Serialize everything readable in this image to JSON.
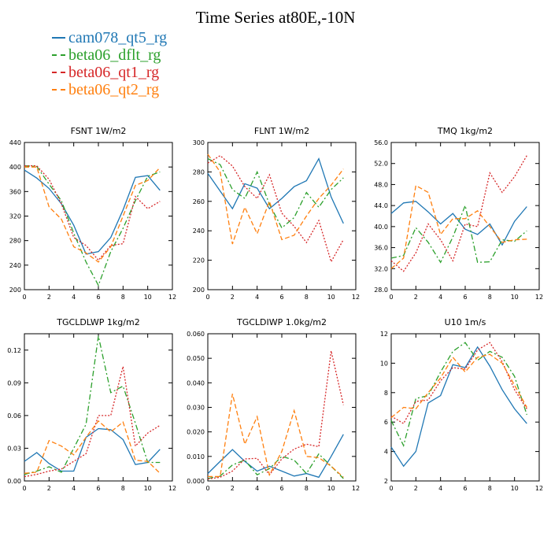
{
  "title": "Time Series at80E,-10N",
  "series_meta": [
    {
      "name": "cam078_qt5_rg",
      "color": "#1f77b4",
      "dash": "none"
    },
    {
      "name": "beta06_dflt_rg",
      "color": "#2ca02c",
      "dash": "7,3,2,3"
    },
    {
      "name": "beta06_qt1_rg",
      "color": "#d62728",
      "dash": "2,2"
    },
    {
      "name": "beta06_qt2_rg",
      "color": "#ff7f0e",
      "dash": "6,3"
    }
  ],
  "chart_data": [
    {
      "type": "line",
      "title": "FSNT  1W/m2",
      "x": [
        0,
        1,
        2,
        3,
        4,
        5,
        6,
        7,
        8,
        9,
        10,
        11
      ],
      "xlim": [
        0,
        12
      ],
      "xticks": [
        0,
        2,
        4,
        6,
        8,
        10,
        12
      ],
      "xtick_labels": [
        "0",
        "2",
        "4",
        "6",
        "8",
        "10",
        "12"
      ],
      "ylim": [
        200,
        440
      ],
      "yticks": [
        200,
        240,
        280,
        320,
        360,
        400,
        440
      ],
      "ytick_labels": [
        "200",
        "240",
        "280",
        "320",
        "360",
        "400",
        "440"
      ],
      "series": [
        {
          "name": "cam078_qt5_rg",
          "values": [
            395,
            382,
            365,
            340,
            305,
            258,
            262,
            285,
            330,
            383,
            386,
            362
          ]
        },
        {
          "name": "beta06_dflt_rg",
          "values": [
            402,
            401,
            372,
            345,
            292,
            245,
            207,
            262,
            300,
            345,
            385,
            392
          ]
        },
        {
          "name": "beta06_qt1_rg",
          "values": [
            402,
            402,
            380,
            340,
            285,
            272,
            248,
            272,
            275,
            352,
            332,
            344
          ]
        },
        {
          "name": "beta06_qt2_rg",
          "values": [
            400,
            400,
            335,
            315,
            270,
            260,
            245,
            270,
            320,
            370,
            378,
            399
          ]
        }
      ]
    },
    {
      "type": "line",
      "title": "FLNT  1W/m2",
      "x": [
        0,
        1,
        2,
        3,
        4,
        5,
        6,
        7,
        8,
        9,
        10,
        11
      ],
      "xlim": [
        0,
        12
      ],
      "xticks": [
        0,
        2,
        4,
        6,
        8,
        10,
        12
      ],
      "xtick_labels": [
        "0",
        "2",
        "4",
        "6",
        "8",
        "10",
        "12"
      ],
      "ylim": [
        200,
        300
      ],
      "yticks": [
        200,
        220,
        240,
        260,
        280,
        300
      ],
      "ytick_labels": [
        "200",
        "220",
        "240",
        "260",
        "280",
        "300"
      ],
      "series": [
        {
          "name": "cam078_qt5_rg",
          "values": [
            279,
            267,
            255,
            272,
            269,
            255,
            262,
            270,
            274,
            289,
            263,
            245
          ]
        },
        {
          "name": "beta06_dflt_rg",
          "values": [
            289,
            285,
            268,
            262,
            280,
            258,
            242,
            249,
            266,
            256,
            268,
            276
          ]
        },
        {
          "name": "beta06_qt1_rg",
          "values": [
            286,
            291,
            284,
            270,
            262,
            278,
            252,
            243,
            232,
            247,
            219,
            234
          ]
        },
        {
          "name": "beta06_qt2_rg",
          "values": [
            292,
            280,
            231,
            256,
            238,
            260,
            234,
            237,
            250,
            262,
            271,
            282
          ]
        }
      ]
    },
    {
      "type": "line",
      "title": "TMQ  1kg/m2",
      "x": [
        0,
        1,
        2,
        3,
        4,
        5,
        6,
        7,
        8,
        9,
        10,
        11
      ],
      "xlim": [
        0,
        12
      ],
      "xticks": [
        0,
        2,
        4,
        6,
        8,
        10,
        12
      ],
      "xtick_labels": [
        "0",
        "2",
        "4",
        "6",
        "8",
        "10",
        "12"
      ],
      "ylim": [
        28,
        56
      ],
      "yticks": [
        28,
        32,
        36,
        40,
        44,
        48,
        52,
        56
      ],
      "ytick_labels": [
        "28.0",
        "32.0",
        "36.0",
        "40.0",
        "44.0",
        "48.0",
        "52.0",
        "56.0"
      ],
      "series": [
        {
          "name": "cam078_qt5_rg",
          "values": [
            42.5,
            44.5,
            44.8,
            42.8,
            40.5,
            42.5,
            39.5,
            38.5,
            40.5,
            36.5,
            41.0,
            43.8
          ]
        },
        {
          "name": "beta06_dflt_rg",
          "values": [
            34.0,
            34.5,
            39.8,
            37.0,
            33.2,
            38.0,
            44.0,
            33.2,
            33.3,
            37.5,
            37.2,
            39.2
          ]
        },
        {
          "name": "beta06_qt1_rg",
          "values": [
            33.5,
            31.5,
            35.0,
            40.5,
            37.5,
            33.5,
            40.5,
            40.0,
            50.2,
            46.5,
            49.5,
            53.5
          ]
        },
        {
          "name": "beta06_qt2_rg",
          "values": [
            32.0,
            34.0,
            47.8,
            46.5,
            38.5,
            41.5,
            41.5,
            43.0,
            40.0,
            37.0,
            37.5,
            37.6
          ]
        }
      ]
    },
    {
      "type": "line",
      "title": "TGCLDLWP  1kg/m2",
      "x": [
        0,
        1,
        2,
        3,
        4,
        5,
        6,
        7,
        8,
        9,
        10,
        11
      ],
      "xlim": [
        0,
        12
      ],
      "xticks": [
        0,
        2,
        4,
        6,
        8,
        10,
        12
      ],
      "xtick_labels": [
        "0",
        "2",
        "4",
        "6",
        "8",
        "10",
        "12"
      ],
      "ylim": [
        0,
        0.135
      ],
      "yticks": [
        0,
        0.03,
        0.06,
        0.09,
        0.12
      ],
      "ytick_labels": [
        "0.00",
        "0.03",
        "0.06",
        "0.09",
        "0.12"
      ],
      "series": [
        {
          "name": "cam078_qt5_rg",
          "values": [
            0.018,
            0.026,
            0.016,
            0.009,
            0.009,
            0.04,
            0.048,
            0.047,
            0.038,
            0.015,
            0.017,
            0.029
          ]
        },
        {
          "name": "beta06_dflt_rg",
          "values": [
            0.006,
            0.009,
            0.013,
            0.008,
            0.03,
            0.052,
            0.133,
            0.081,
            0.087,
            0.053,
            0.017,
            0.017
          ]
        },
        {
          "name": "beta06_qt1_rg",
          "values": [
            0.004,
            0.006,
            0.009,
            0.011,
            0.018,
            0.025,
            0.06,
            0.06,
            0.105,
            0.032,
            0.044,
            0.051
          ]
        },
        {
          "name": "beta06_qt2_rg",
          "values": [
            0.007,
            0.008,
            0.037,
            0.032,
            0.024,
            0.04,
            0.055,
            0.045,
            0.054,
            0.019,
            0.018,
            0.007
          ]
        }
      ]
    },
    {
      "type": "line",
      "title": "TGCLDIWP  1.0kg/m2",
      "x": [
        0,
        1,
        2,
        3,
        4,
        5,
        6,
        7,
        8,
        9,
        10,
        11
      ],
      "xlim": [
        0,
        12
      ],
      "xticks": [
        0,
        2,
        4,
        6,
        8,
        10,
        12
      ],
      "xtick_labels": [
        "0",
        "2",
        "4",
        "6",
        "8",
        "10",
        "12"
      ],
      "ylim": [
        0,
        0.06
      ],
      "yticks": [
        0,
        0.01,
        0.02,
        0.03,
        0.04,
        0.05,
        0.06
      ],
      "ytick_labels": [
        "0.000",
        "0.010",
        "0.020",
        "0.030",
        "0.040",
        "0.050",
        "0.060"
      ],
      "series": [
        {
          "name": "cam078_qt5_rg",
          "values": [
            0.003,
            0.008,
            0.0128,
            0.008,
            0.004,
            0.006,
            0.004,
            0.002,
            0.003,
            0.0015,
            0.01,
            0.019
          ]
        },
        {
          "name": "beta06_dflt_rg",
          "values": [
            0.001,
            0.002,
            0.0065,
            0.0085,
            0.0025,
            0.005,
            0.01,
            0.0085,
            0.003,
            0.011,
            0.006,
            0.001
          ]
        },
        {
          "name": "beta06_qt1_rg",
          "values": [
            0.0008,
            0.0015,
            0.004,
            0.009,
            0.0092,
            0.0025,
            0.009,
            0.013,
            0.015,
            0.014,
            0.053,
            0.031
          ]
        },
        {
          "name": "beta06_qt2_rg",
          "values": [
            0.0018,
            0.0018,
            0.0355,
            0.015,
            0.0262,
            0.0025,
            0.012,
            0.0287,
            0.01,
            0.0095,
            0.006,
            0.0015
          ]
        }
      ]
    },
    {
      "type": "line",
      "title": "U10  1m/s",
      "x": [
        0,
        1,
        2,
        3,
        4,
        5,
        6,
        7,
        8,
        9,
        10,
        11
      ],
      "xlim": [
        0,
        12
      ],
      "xticks": [
        0,
        2,
        4,
        6,
        8,
        10,
        12
      ],
      "xtick_labels": [
        "0",
        "2",
        "4",
        "6",
        "8",
        "10",
        "12"
      ],
      "ylim": [
        2,
        12
      ],
      "yticks": [
        2,
        4,
        6,
        8,
        10,
        12
      ],
      "ytick_labels": [
        "2",
        "4",
        "6",
        "8",
        "10",
        "12"
      ],
      "series": [
        {
          "name": "cam078_qt5_rg",
          "values": [
            4.3,
            3.0,
            4.0,
            7.3,
            7.8,
            9.9,
            9.7,
            11.1,
            9.8,
            8.2,
            6.9,
            5.9
          ]
        },
        {
          "name": "beta06_dflt_rg",
          "values": [
            6.1,
            4.4,
            7.6,
            7.8,
            9.4,
            10.8,
            11.4,
            10.2,
            10.8,
            10.4,
            9.1,
            6.5
          ]
        },
        {
          "name": "beta06_qt1_rg",
          "values": [
            6.4,
            5.9,
            7.4,
            7.5,
            8.8,
            9.7,
            9.6,
            10.9,
            11.4,
            10.1,
            8.2,
            6.9
          ]
        },
        {
          "name": "beta06_qt2_rg",
          "values": [
            6.3,
            7.0,
            6.9,
            8.0,
            9.0,
            10.4,
            9.4,
            10.4,
            10.6,
            10.0,
            8.5,
            7.0
          ]
        }
      ]
    }
  ]
}
